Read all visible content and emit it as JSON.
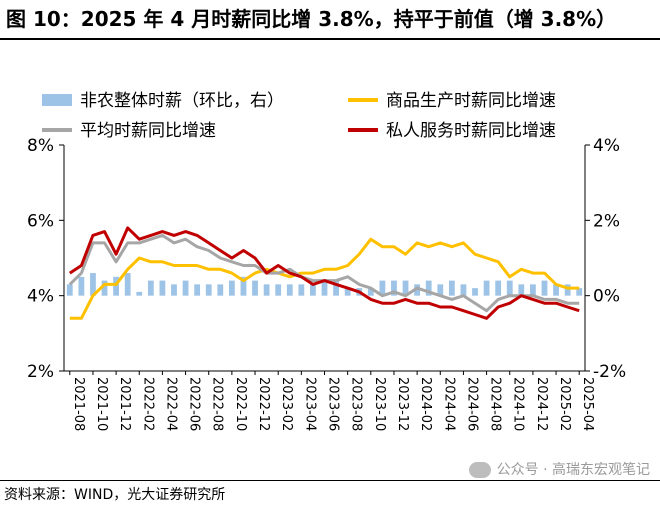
{
  "title": "图 10：2025 年 4 月时薪同比增 3.8%，持平于前值（增 3.8%）",
  "source": "资料来源：WIND，光大证券研究所",
  "watermark": "公众号 · 高瑞东宏观笔记",
  "colors": {
    "bar": "#9dc3e6",
    "goods": "#ffc000",
    "avg": "#a6a6a6",
    "private": "#c00000"
  },
  "chart_data": {
    "type": "bar+line",
    "x_labels": [
      "2021-08",
      "2021-10",
      "2021-12",
      "2022-02",
      "2022-04",
      "2022-06",
      "2022-08",
      "2022-10",
      "2022-12",
      "2023-02",
      "2023-04",
      "2023-06",
      "2023-08",
      "2023-10",
      "2023-12",
      "2024-02",
      "2024-04",
      "2024-06",
      "2024-08",
      "2024-10",
      "2024-12",
      "2025-02",
      "2025-04"
    ],
    "months": [
      "2021-08",
      "2021-09",
      "2021-10",
      "2021-11",
      "2021-12",
      "2022-01",
      "2022-02",
      "2022-03",
      "2022-04",
      "2022-05",
      "2022-06",
      "2022-07",
      "2022-08",
      "2022-09",
      "2022-10",
      "2022-11",
      "2022-12",
      "2023-01",
      "2023-02",
      "2023-03",
      "2023-04",
      "2023-05",
      "2023-06",
      "2023-07",
      "2023-08",
      "2023-09",
      "2023-10",
      "2023-11",
      "2023-12",
      "2024-01",
      "2024-02",
      "2024-03",
      "2024-04",
      "2024-05",
      "2024-06",
      "2024-07",
      "2024-08",
      "2024-09",
      "2024-10",
      "2024-11",
      "2024-12",
      "2025-01",
      "2025-02",
      "2025-03",
      "2025-04"
    ],
    "left_axis": {
      "min": 2,
      "max": 8,
      "ticks": [
        "2%",
        "4%",
        "6%",
        "8%"
      ]
    },
    "right_axis": {
      "min": -2,
      "max": 4,
      "ticks": [
        "-2%",
        "0%",
        "2%",
        "4%"
      ]
    },
    "legend": [
      {
        "key": "bar",
        "label": "非农整体时薪（环比，右）",
        "style": "bar"
      },
      {
        "key": "goods",
        "label": "商品生产时薪同比增速",
        "style": "line"
      },
      {
        "key": "avg",
        "label": "平均时薪同比增速",
        "style": "line"
      },
      {
        "key": "private",
        "label": "私人服务时薪同比增速",
        "style": "line"
      }
    ],
    "series": [
      {
        "name": "非农整体时薪（环比，右）",
        "axis": "right",
        "type": "bar",
        "values": [
          0.3,
          0.5,
          0.6,
          0.4,
          0.5,
          0.6,
          0.1,
          0.4,
          0.4,
          0.3,
          0.4,
          0.3,
          0.3,
          0.3,
          0.4,
          0.5,
          0.4,
          0.3,
          0.3,
          0.3,
          0.3,
          0.3,
          0.4,
          0.4,
          0.2,
          0.2,
          0.2,
          0.4,
          0.4,
          0.4,
          0.3,
          0.4,
          0.3,
          0.4,
          0.3,
          0.2,
          0.4,
          0.4,
          0.4,
          0.3,
          0.3,
          0.4,
          0.3,
          0.3,
          0.2
        ]
      },
      {
        "name": "商品生产时薪同比增速",
        "axis": "left",
        "type": "line",
        "values": [
          3.4,
          3.4,
          4.0,
          4.3,
          4.3,
          4.7,
          5.0,
          4.9,
          4.9,
          4.8,
          4.8,
          4.8,
          4.7,
          4.7,
          4.6,
          4.4,
          4.6,
          4.7,
          4.6,
          4.5,
          4.6,
          4.6,
          4.7,
          4.7,
          4.8,
          5.1,
          5.5,
          5.3,
          5.3,
          5.1,
          5.4,
          5.3,
          5.4,
          5.3,
          5.4,
          5.1,
          5.0,
          4.9,
          4.5,
          4.7,
          4.6,
          4.6,
          4.3,
          4.2,
          4.2
        ]
      },
      {
        "name": "平均时薪同比增速",
        "axis": "left",
        "type": "line",
        "values": [
          4.3,
          4.6,
          5.4,
          5.4,
          4.9,
          5.4,
          5.4,
          5.5,
          5.6,
          5.4,
          5.5,
          5.3,
          5.2,
          5.0,
          4.9,
          4.8,
          4.8,
          4.6,
          4.6,
          4.7,
          4.5,
          4.4,
          4.4,
          4.4,
          4.5,
          4.3,
          4.2,
          4.0,
          4.1,
          4.0,
          4.2,
          4.1,
          4.0,
          3.9,
          4.0,
          3.8,
          3.6,
          3.9,
          4.0,
          4.0,
          4.0,
          3.9,
          3.9,
          3.8,
          3.8
        ]
      },
      {
        "name": "私人服务时薪同比增速",
        "axis": "left",
        "type": "line",
        "values": [
          4.6,
          4.8,
          5.6,
          5.7,
          5.1,
          5.8,
          5.5,
          5.6,
          5.7,
          5.6,
          5.7,
          5.6,
          5.4,
          5.2,
          5.0,
          5.2,
          5.0,
          4.6,
          4.8,
          4.6,
          4.5,
          4.3,
          4.4,
          4.3,
          4.2,
          4.1,
          3.9,
          3.8,
          3.8,
          3.9,
          3.8,
          3.8,
          3.7,
          3.7,
          3.6,
          3.5,
          3.4,
          3.7,
          3.8,
          4.0,
          3.9,
          3.8,
          3.8,
          3.7,
          3.6
        ]
      }
    ]
  }
}
